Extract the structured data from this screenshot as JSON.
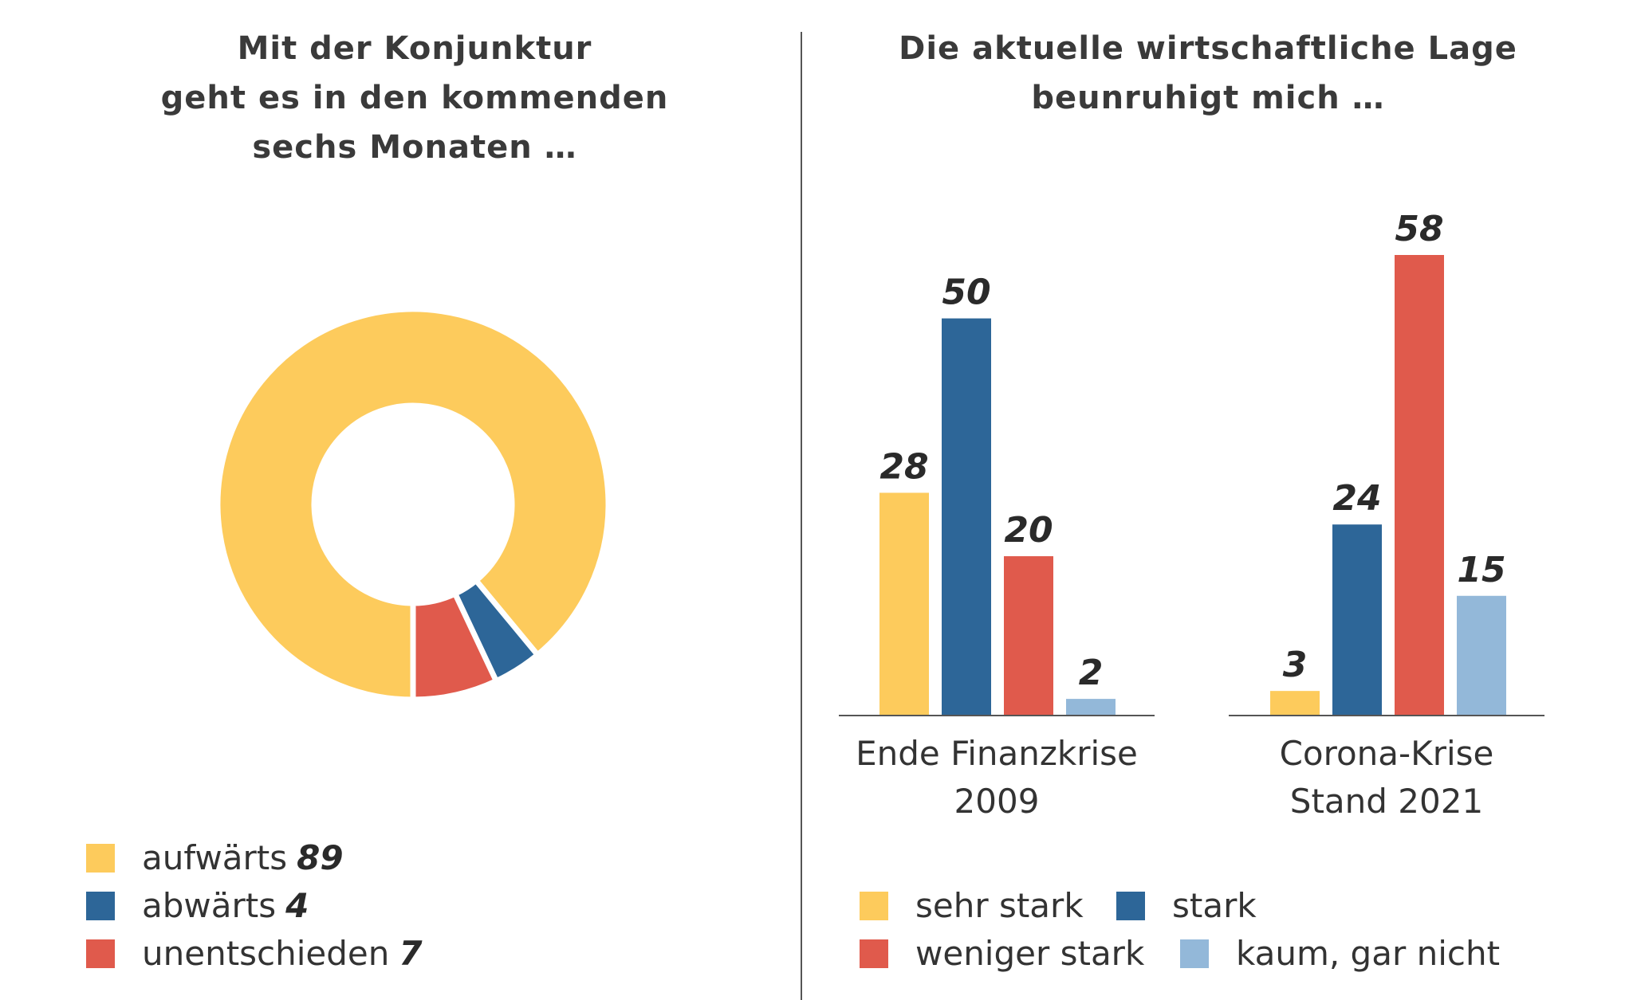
{
  "left_chart": {
    "title_lines": [
      "Mit der Konjunktur",
      "geht es in den kommenden",
      "sechs Monaten …"
    ]
  },
  "right_chart": {
    "title_lines": [
      "Die aktuelle wirtschaftliche Lage",
      "beunruhigt mich …"
    ]
  },
  "colors": {
    "yellow": "#fdcb5c",
    "blue": "#2d6698",
    "red": "#e05a4c",
    "light_blue": "#93b8d9"
  },
  "chart_data": [
    {
      "type": "pie",
      "variant": "donut",
      "title": "Mit der Konjunktur geht es in den kommenden sechs Monaten …",
      "slices": [
        {
          "label": "aufwärts",
          "value": 89,
          "color": "#fdcb5c"
        },
        {
          "label": "abwärts",
          "value": 4,
          "color": "#2d6698"
        },
        {
          "label": "unentschieden",
          "value": 7,
          "color": "#e05a4c"
        }
      ],
      "legend_position": "bottom-left"
    },
    {
      "type": "bar",
      "title": "Die aktuelle wirtschaftliche Lage beunruhigt mich …",
      "categories": [
        {
          "lines": [
            "Ende Finanzkrise",
            "2009"
          ]
        },
        {
          "lines": [
            "Corona-Krise",
            "Stand 2021"
          ]
        }
      ],
      "series": [
        {
          "name": "sehr stark",
          "color": "#fdcb5c",
          "values": [
            28,
            3
          ]
        },
        {
          "name": "stark",
          "color": "#2d6698",
          "values": [
            50,
            24
          ]
        },
        {
          "name": "weniger stark",
          "color": "#e05a4c",
          "values": [
            20,
            58
          ]
        },
        {
          "name": "kaum, gar nicht",
          "color": "#93b8d9",
          "values": [
            2,
            15
          ]
        }
      ],
      "ylim": [
        0,
        58
      ],
      "grid": false,
      "data_labels": true,
      "legend_position": "bottom"
    }
  ]
}
